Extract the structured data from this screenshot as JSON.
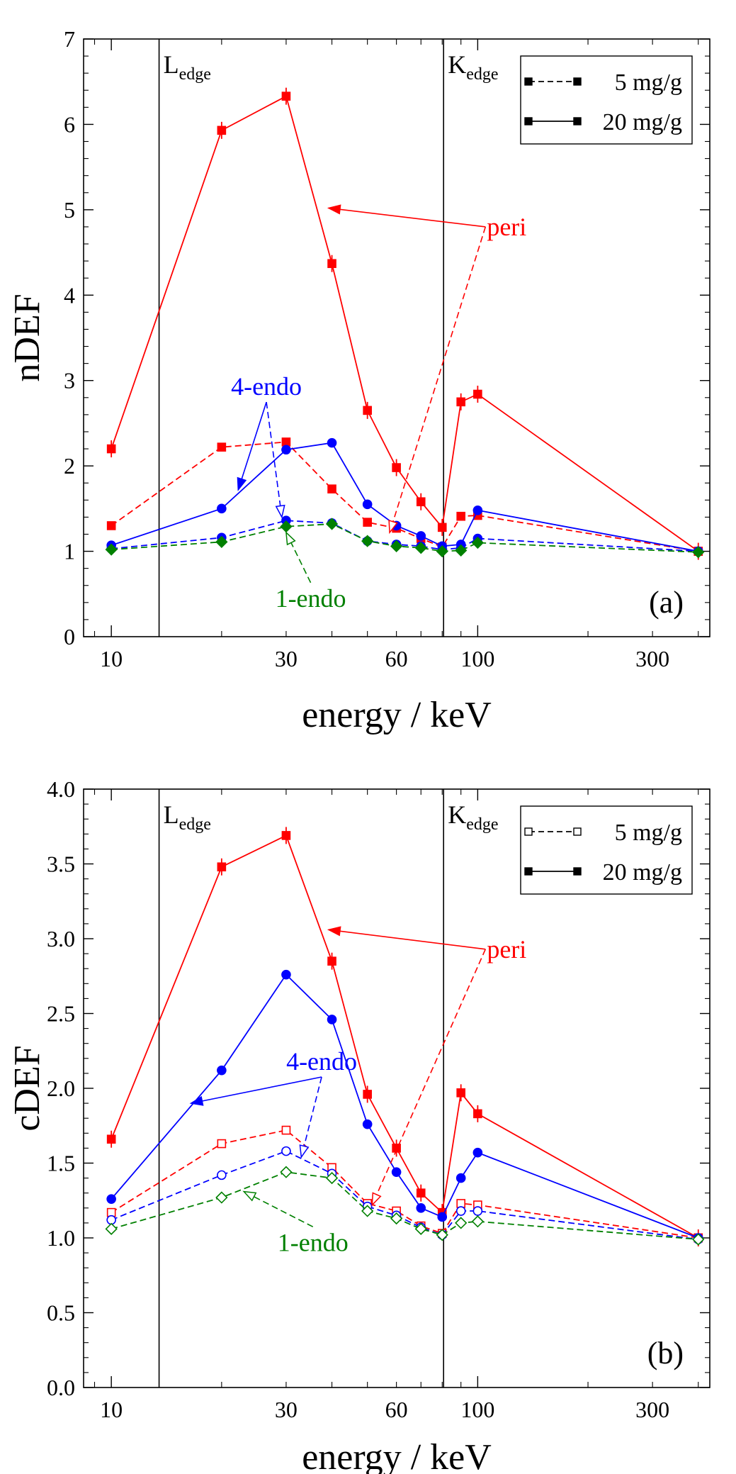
{
  "colors": {
    "peri": "#ff0000",
    "endo4": "#0000ff",
    "endo1": "#008000",
    "axis": "#000000"
  },
  "chart_data": [
    {
      "type": "line",
      "panel_label": "(a)",
      "xlabel": "energy / keV",
      "ylabel": "nDEF",
      "xscale": "log",
      "xlim": [
        8.4,
        430
      ],
      "ylim": [
        0,
        7
      ],
      "xticks": [
        10,
        30,
        60,
        100,
        300
      ],
      "xtick_labels": [
        "10",
        "30",
        "60",
        "100",
        "300"
      ],
      "yticks": [
        0,
        1,
        2,
        3,
        4,
        5,
        6,
        7
      ],
      "ytick_labels": [
        "0",
        "1",
        "2",
        "3",
        "4",
        "5",
        "6",
        "7"
      ],
      "edges": [
        {
          "label": "L",
          "sub": "edge",
          "x": 13.5
        },
        {
          "label": "K",
          "sub": "edge",
          "x": 80.7
        }
      ],
      "legend": {
        "placement": "top-right",
        "entries": [
          {
            "label": "5 mg/g",
            "style": "dashed",
            "marker": "filled"
          },
          {
            "label": "20 mg/g",
            "style": "solid",
            "marker": "filled"
          }
        ]
      },
      "series": [
        {
          "group": "peri",
          "dose": "20 mg/g",
          "style": "solid",
          "marker": "square",
          "filled": true,
          "x": [
            10,
            20,
            30,
            40,
            50,
            60,
            70,
            80,
            90,
            100,
            400
          ],
          "y": [
            2.2,
            5.93,
            6.33,
            4.37,
            2.65,
            1.98,
            1.58,
            1.28,
            2.75,
            2.84,
            1.0
          ]
        },
        {
          "group": "peri",
          "dose": "5 mg/g",
          "style": "dashed",
          "marker": "square",
          "filled": true,
          "x": [
            10,
            20,
            30,
            40,
            50,
            60,
            70,
            80,
            90,
            100,
            400
          ],
          "y": [
            1.3,
            2.22,
            2.28,
            1.73,
            1.34,
            1.27,
            1.15,
            1.05,
            1.41,
            1.42,
            1.0
          ]
        },
        {
          "group": "4-endo",
          "dose": "20 mg/g",
          "style": "solid",
          "marker": "circle",
          "filled": true,
          "x": [
            10,
            20,
            30,
            40,
            50,
            60,
            70,
            80,
            90,
            100,
            400
          ],
          "y": [
            1.07,
            1.5,
            2.19,
            2.27,
            1.55,
            1.3,
            1.18,
            1.06,
            1.08,
            1.48,
            1.0
          ]
        },
        {
          "group": "4-endo",
          "dose": "5 mg/g",
          "style": "dashed",
          "marker": "circle",
          "filled": true,
          "x": [
            10,
            20,
            30,
            40,
            50,
            60,
            70,
            80,
            90,
            100,
            400
          ],
          "y": [
            1.03,
            1.16,
            1.36,
            1.33,
            1.12,
            1.08,
            1.06,
            1.02,
            1.04,
            1.15,
            1.0
          ]
        },
        {
          "group": "1-endo",
          "dose": "5 mg/g",
          "style": "dashed",
          "marker": "diamond",
          "filled": true,
          "x": [
            10,
            20,
            30,
            40,
            50,
            60,
            70,
            80,
            90,
            100,
            400
          ],
          "y": [
            1.02,
            1.11,
            1.29,
            1.32,
            1.12,
            1.06,
            1.04,
            1.0,
            1.01,
            1.1,
            0.99
          ]
        }
      ],
      "annotations": [
        {
          "text": "peri",
          "color": "peri",
          "x": 120,
          "y": 4.8,
          "arrows": [
            {
              "to": [
                39.2,
                5.02
              ],
              "style": "solid"
            },
            {
              "to": [
                57.5,
                1.22
              ],
              "style": "dashed"
            }
          ]
        },
        {
          "text": "4-endo",
          "color": "endo4",
          "x": 26.5,
          "y": 2.93,
          "arrows": [
            {
              "to": [
                22.2,
                1.72
              ],
              "style": "solid"
            },
            {
              "to": [
                29.2,
                1.4
              ],
              "style": "dashed"
            }
          ]
        },
        {
          "text": "1-endo",
          "color": "endo1",
          "x": 35,
          "y": 0.45,
          "arrows": [
            {
              "to": [
                30,
                1.22
              ],
              "style": "dashed"
            }
          ]
        }
      ]
    },
    {
      "type": "line",
      "panel_label": "(b)",
      "xlabel": "energy / keV",
      "ylabel": "cDEF",
      "xscale": "log",
      "xlim": [
        8.4,
        430
      ],
      "ylim": [
        0,
        4
      ],
      "xticks": [
        10,
        30,
        60,
        100,
        300
      ],
      "xtick_labels": [
        "10",
        "30",
        "60",
        "100",
        "300"
      ],
      "yticks": [
        0,
        0.5,
        1,
        1.5,
        2,
        2.5,
        3,
        3.5,
        4
      ],
      "ytick_labels": [
        "0.0",
        "0.5",
        "1.0",
        "1.5",
        "2.0",
        "2.5",
        "3.0",
        "3.5",
        "4.0"
      ],
      "edges": [
        {
          "label": "L",
          "sub": "edge",
          "x": 13.5
        },
        {
          "label": "K",
          "sub": "edge",
          "x": 80.7
        }
      ],
      "legend": {
        "placement": "top-right",
        "entries": [
          {
            "label": "5 mg/g",
            "style": "dashed",
            "marker": "open"
          },
          {
            "label": "20 mg/g",
            "style": "solid",
            "marker": "filled"
          }
        ]
      },
      "series": [
        {
          "group": "peri",
          "dose": "20 mg/g",
          "style": "solid",
          "marker": "square",
          "filled": true,
          "x": [
            10,
            20,
            30,
            40,
            50,
            60,
            70,
            80,
            90,
            100,
            400
          ],
          "y": [
            1.66,
            3.48,
            3.69,
            2.85,
            1.96,
            1.6,
            1.3,
            1.17,
            1.97,
            1.83,
            1.0
          ]
        },
        {
          "group": "peri",
          "dose": "5 mg/g",
          "style": "dashed",
          "marker": "square",
          "filled": false,
          "x": [
            10,
            20,
            30,
            40,
            50,
            60,
            70,
            80,
            90,
            100,
            400
          ],
          "y": [
            1.17,
            1.63,
            1.72,
            1.47,
            1.23,
            1.18,
            1.08,
            1.03,
            1.23,
            1.22,
            1.0
          ]
        },
        {
          "group": "4-endo",
          "dose": "20 mg/g",
          "style": "solid",
          "marker": "circle",
          "filled": true,
          "x": [
            10,
            20,
            30,
            40,
            50,
            60,
            70,
            80,
            90,
            100,
            400
          ],
          "y": [
            1.26,
            2.12,
            2.76,
            2.46,
            1.76,
            1.44,
            1.2,
            1.14,
            1.4,
            1.57,
            1.0
          ]
        },
        {
          "group": "4-endo",
          "dose": "5 mg/g",
          "style": "dashed",
          "marker": "circle",
          "filled": false,
          "x": [
            10,
            20,
            30,
            40,
            50,
            60,
            70,
            80,
            90,
            100,
            400
          ],
          "y": [
            1.12,
            1.42,
            1.58,
            1.43,
            1.21,
            1.15,
            1.07,
            1.02,
            1.18,
            1.18,
            0.99
          ]
        },
        {
          "group": "1-endo",
          "dose": "5 mg/g",
          "style": "dashed",
          "marker": "diamond",
          "filled": false,
          "x": [
            10,
            20,
            30,
            40,
            50,
            60,
            70,
            80,
            90,
            100,
            400
          ],
          "y": [
            1.06,
            1.27,
            1.44,
            1.4,
            1.18,
            1.13,
            1.06,
            1.02,
            1.1,
            1.11,
            0.99
          ]
        }
      ],
      "annotations": [
        {
          "text": "peri",
          "color": "peri",
          "x": 120,
          "y": 2.93,
          "arrows": [
            {
              "to": [
                39.2,
                3.06
              ],
              "style": "solid"
            },
            {
              "to": [
                51.5,
                1.22
              ],
              "style": "dashed"
            }
          ]
        },
        {
          "text": "4-endo",
          "color": "endo4",
          "x": 37.5,
          "y": 2.18,
          "arrows": [
            {
              "to": [
                16.5,
                1.9
              ],
              "style": "solid"
            },
            {
              "to": [
                33,
                1.54
              ],
              "style": "dashed"
            }
          ]
        },
        {
          "text": "1-endo",
          "color": "endo1",
          "x": 35.5,
          "y": 0.97,
          "arrows": [
            {
              "to": [
                23,
                1.31
              ],
              "style": "dashed"
            }
          ]
        }
      ]
    }
  ]
}
